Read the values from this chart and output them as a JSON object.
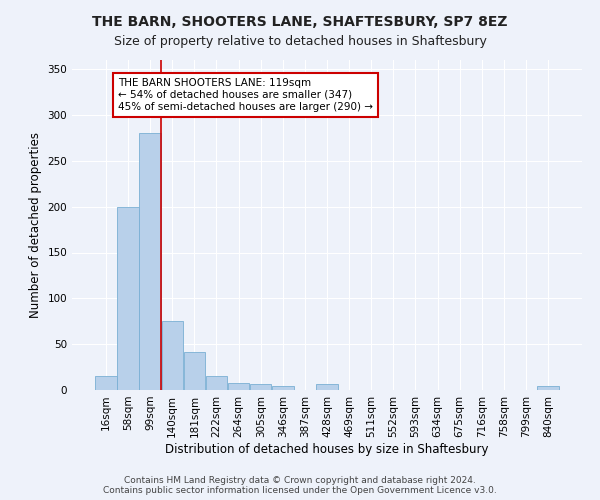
{
  "title": "THE BARN, SHOOTERS LANE, SHAFTESBURY, SP7 8EZ",
  "subtitle": "Size of property relative to detached houses in Shaftesbury",
  "xlabel": "Distribution of detached houses by size in Shaftesbury",
  "ylabel": "Number of detached properties",
  "bar_color": "#b8d0ea",
  "bar_edge_color": "#7aafd4",
  "bin_labels": [
    "16sqm",
    "58sqm",
    "99sqm",
    "140sqm",
    "181sqm",
    "222sqm",
    "264sqm",
    "305sqm",
    "346sqm",
    "387sqm",
    "428sqm",
    "469sqm",
    "511sqm",
    "552sqm",
    "593sqm",
    "634sqm",
    "675sqm",
    "716sqm",
    "758sqm",
    "799sqm",
    "840sqm"
  ],
  "bar_heights": [
    15,
    200,
    280,
    75,
    42,
    15,
    8,
    7,
    4,
    0,
    7,
    0,
    0,
    0,
    0,
    0,
    0,
    0,
    0,
    0,
    4
  ],
  "ylim": [
    0,
    360
  ],
  "yticks": [
    0,
    50,
    100,
    150,
    200,
    250,
    300,
    350
  ],
  "annotation_text": "THE BARN SHOOTERS LANE: 119sqm\n← 54% of detached houses are smaller (347)\n45% of semi-detached houses are larger (290) →",
  "annotation_box_color": "#ffffff",
  "annotation_box_edge": "#cc0000",
  "redline_color": "#cc0000",
  "bg_color": "#eef2fa",
  "grid_color": "#ffffff",
  "footer_text": "Contains HM Land Registry data © Crown copyright and database right 2024.\nContains public sector information licensed under the Open Government Licence v3.0.",
  "title_fontsize": 10,
  "subtitle_fontsize": 9,
  "xlabel_fontsize": 8.5,
  "ylabel_fontsize": 8.5,
  "tick_fontsize": 7.5,
  "annotation_fontsize": 7.5,
  "footer_fontsize": 6.5
}
